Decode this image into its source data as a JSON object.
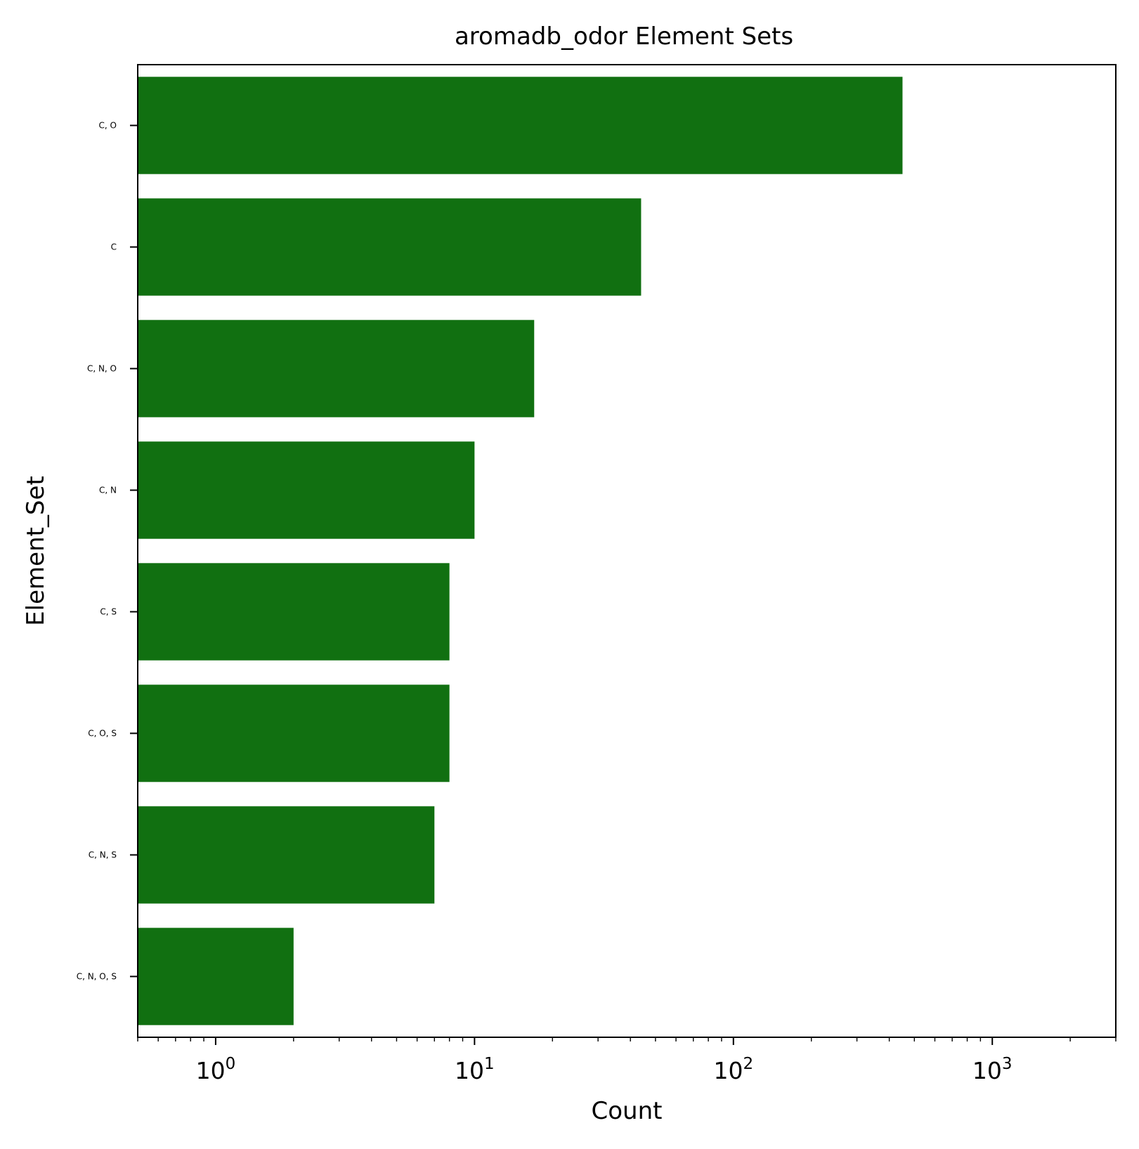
{
  "chart_data": {
    "type": "bar",
    "orientation": "horizontal",
    "title": "aromadb_odor Element Sets",
    "xlabel": "Count",
    "ylabel": "Element_Set",
    "x_scale": "log",
    "xlim": [
      0.5,
      3000
    ],
    "x_major_ticks": [
      1,
      10,
      100,
      1000
    ],
    "x_tick_labels": [
      {
        "base": "10",
        "exp": "0"
      },
      {
        "base": "10",
        "exp": "1"
      },
      {
        "base": "10",
        "exp": "2"
      },
      {
        "base": "10",
        "exp": "3"
      }
    ],
    "categories": [
      "C, O",
      "C",
      "C, N, O",
      "C, N",
      "C, S",
      "C, O, S",
      "C, N, S",
      "C, N, O, S"
    ],
    "values": [
      450,
      44,
      17,
      10,
      8,
      8,
      7,
      2
    ],
    "bar_color": "#117011",
    "grid": false,
    "legend": "none"
  }
}
